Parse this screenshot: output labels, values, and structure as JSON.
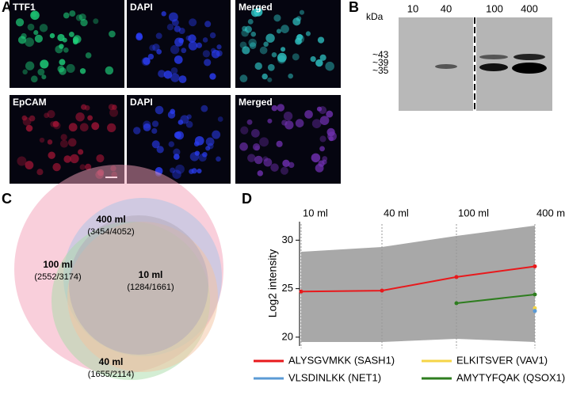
{
  "panel_a": {
    "letter": "A",
    "top_labels": [
      "TTF1",
      "DAPI",
      "Merged"
    ],
    "bottom_labels": [
      "EpCAM",
      "DAPI",
      "Merged"
    ]
  },
  "panel_b": {
    "letter": "B",
    "unit": "kDa",
    "lanes": [
      "10",
      "40",
      "100",
      "400"
    ],
    "markers": [
      "~43",
      "~39",
      "~35"
    ]
  },
  "panel_c": {
    "letter": "C",
    "sets": [
      {
        "name": "400 ml",
        "count": "(3454/4052)"
      },
      {
        "name": "100 ml",
        "count": "(2552/3174)"
      },
      {
        "name": "10 ml",
        "count": "(1284/1661)"
      },
      {
        "name": "40 ml",
        "count": "(1655/2114)"
      }
    ]
  },
  "chart_data": {
    "type": "line",
    "letter": "D",
    "y_label": "Log2 intensity",
    "categories": [
      "10 ml",
      "40 ml",
      "100 ml",
      "400 ml"
    ],
    "ylim": [
      19.5,
      31.5
    ],
    "yticks": [
      20,
      25,
      30
    ],
    "series": [
      {
        "name": "ALYSGVMKK (SASH1)",
        "color": "#e8191c",
        "values": [
          24.7,
          24.8,
          26.2,
          27.3
        ]
      },
      {
        "name": "ELKITSVER (VAV1)",
        "color": "#f5d547",
        "values": [
          null,
          null,
          null,
          23.0
        ]
      },
      {
        "name": "VLSDINLKK (NET1)",
        "color": "#5b9bd5",
        "values": [
          null,
          null,
          null,
          22.7
        ]
      },
      {
        "name": "AMYTYFQAK (QSOX1)",
        "color": "#2e7d1f",
        "values": [
          null,
          null,
          23.5,
          24.4
        ]
      }
    ]
  }
}
